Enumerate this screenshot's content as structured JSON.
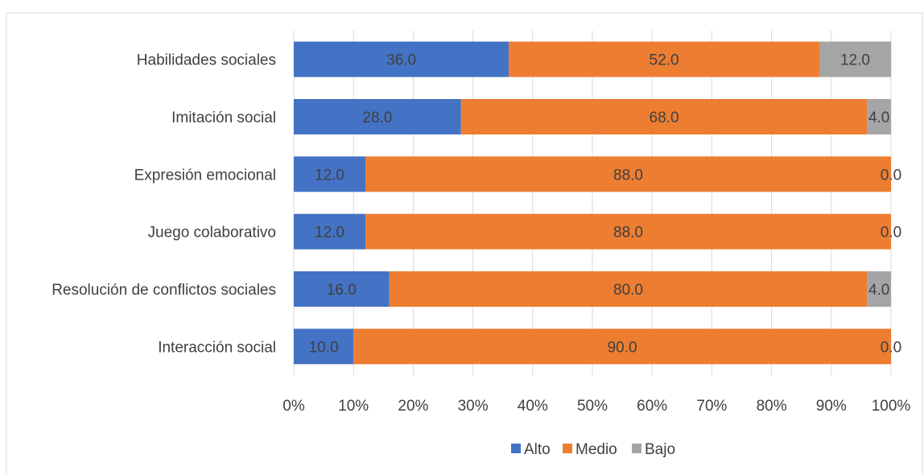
{
  "chart_data": {
    "type": "bar",
    "orientation": "horizontal",
    "stacked": "percent",
    "title": "",
    "xlabel": "",
    "ylabel": "",
    "categories": [
      "Habilidades sociales",
      "Imitación social",
      "Expresión emocional",
      "Juego colaborativo",
      "Resolución de conflictos sociales",
      "Interacción social"
    ],
    "series": [
      {
        "name": "Alto",
        "color": "#4472C4",
        "values": [
          36.0,
          28.0,
          12.0,
          12.0,
          16.0,
          10.0
        ],
        "labels": [
          "36.0",
          "28.0",
          "12.0",
          "12.0",
          "16.0",
          "10.0"
        ]
      },
      {
        "name": "Medio",
        "color": "#ED7D31",
        "values": [
          52.0,
          68.0,
          88.0,
          88.0,
          80.0,
          90.0
        ],
        "labels": [
          "52.0",
          "68.0",
          "88.0",
          "88.0",
          "80.0",
          "90.0"
        ]
      },
      {
        "name": "Bajo",
        "color": "#A5A5A5",
        "values": [
          12.0,
          4.0,
          0.0,
          0.0,
          4.0,
          0.0
        ],
        "labels": [
          "12.0",
          "4.0",
          "0.0",
          "0.0",
          "4.0",
          "0.0"
        ]
      }
    ],
    "xlim": [
      0,
      100
    ],
    "x_ticks": [
      "0%",
      "10%",
      "20%",
      "30%",
      "40%",
      "50%",
      "60%",
      "70%",
      "80%",
      "90%",
      "100%"
    ],
    "grid": "vertical",
    "legend_position": "bottom"
  }
}
